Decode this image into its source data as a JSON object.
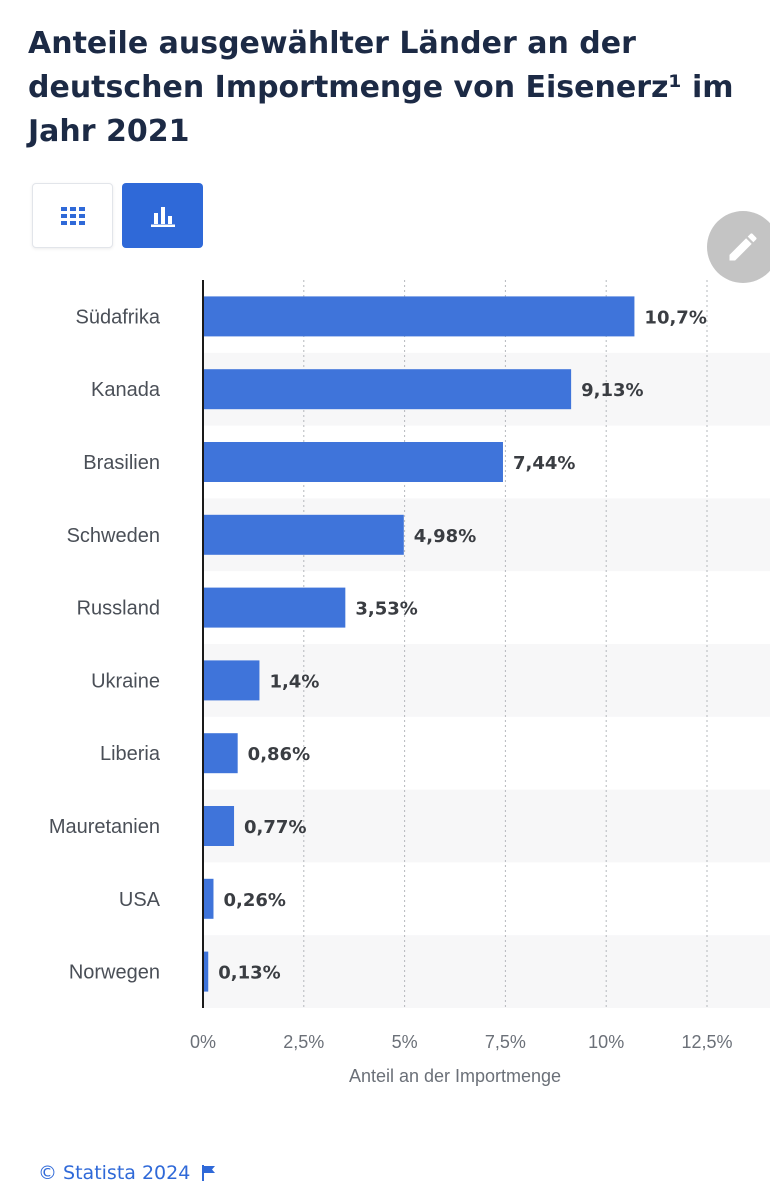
{
  "title": "Anteile ausgewählter Länder an der deutschen Importmenge von Eisenerz¹ im Jahr 2021",
  "view_toggle": {
    "table_icon": "table-grid-icon",
    "chart_icon": "bar-chart-icon",
    "active": "chart"
  },
  "edit_icon": "pencil-icon",
  "footer": {
    "copyright": "© Statista 2024",
    "flag_icon": "flag-icon"
  },
  "colors": {
    "bar": "#3f74da",
    "accent": "#2f69d8",
    "title": "#1c2a45",
    "stripe": "#f7f7f8"
  },
  "chart_data": {
    "type": "bar",
    "orientation": "horizontal",
    "categories": [
      "Südafrika",
      "Kanada",
      "Brasilien",
      "Schweden",
      "Russland",
      "Ukraine",
      "Liberia",
      "Mauretanien",
      "USA",
      "Norwegen"
    ],
    "values": [
      10.7,
      9.13,
      7.44,
      4.98,
      3.53,
      1.4,
      0.86,
      0.77,
      0.26,
      0.13
    ],
    "value_labels": [
      "10,7%",
      "9,13%",
      "7,44%",
      "4,98%",
      "3,53%",
      "1,4%",
      "0,86%",
      "0,77%",
      "0,26%",
      "0,13%"
    ],
    "xlim": [
      0,
      12.5
    ],
    "xticks": [
      0,
      2.5,
      5,
      7.5,
      10,
      12.5
    ],
    "xtick_labels": [
      "0%",
      "2,5%",
      "5%",
      "7,5%",
      "10%",
      "12,5%"
    ],
    "xlabel": "Anteil an der Importmenge",
    "ylabel": "",
    "grid": true,
    "legend": "none"
  }
}
